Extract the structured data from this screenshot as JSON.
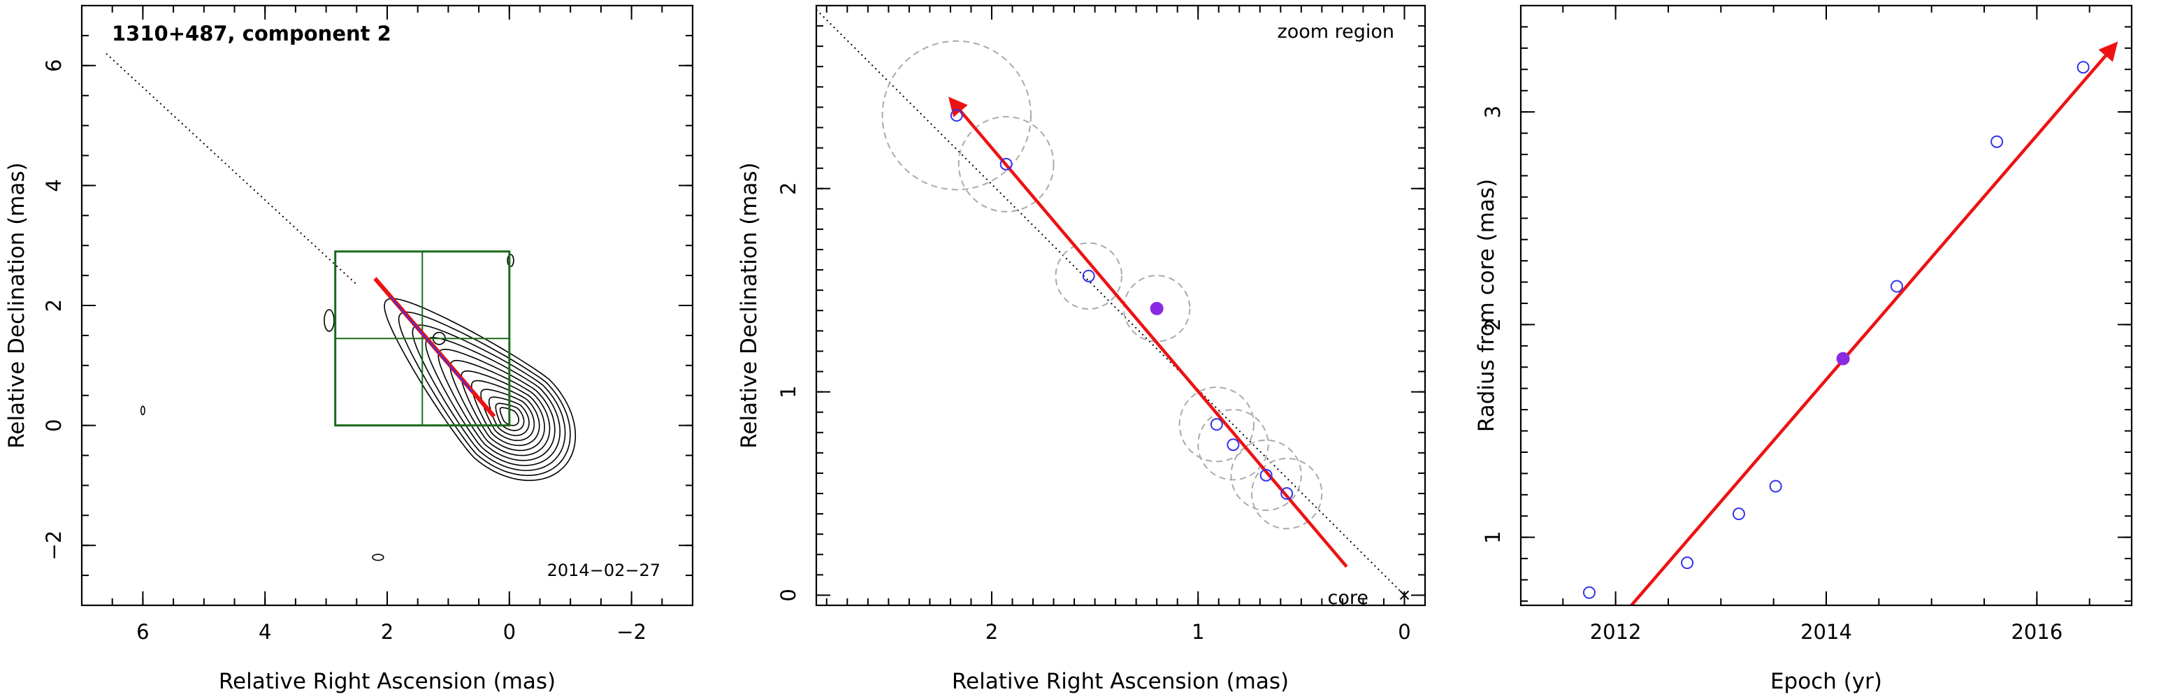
{
  "colors": {
    "trend": "#ee1111",
    "point": "#3333ee",
    "point_fill": "#8a2be2",
    "box": "#1a6b1a",
    "contour": "#000000",
    "circle": "#aaaaaa"
  },
  "chart_data": [
    {
      "type": "scatter",
      "title": "1310+487, component 2",
      "date_label": "2014−02−27",
      "xlabel": "Relative Right Ascension (mas)",
      "ylabel": "Relative Declination (mas)",
      "xlim": [
        7,
        -3
      ],
      "ylim": [
        -3,
        7
      ],
      "xticks": [
        6,
        4,
        2,
        0,
        -2
      ],
      "yticks": [
        -2,
        0,
        2,
        4,
        6
      ],
      "xtick_labels": [
        "6",
        "4",
        "2",
        "0",
        "−2"
      ],
      "ytick_labels": [
        "−2",
        "0",
        "2",
        "4",
        "6"
      ],
      "contours": {
        "core": [
          0,
          0.15
        ],
        "levels": 12,
        "notes": "nested contours of a core-jet radio source extending to the north-east"
      },
      "trajectory": {
        "from": [
          0.25,
          0.15
        ],
        "to": [
          2.2,
          2.45
        ]
      },
      "jet_axis": {
        "from": [
          6.6,
          6.2
        ],
        "to": [
          2.5,
          2.35
        ]
      },
      "zoom_box": {
        "x": [
          2.85,
          0
        ],
        "y": [
          0,
          2.9
        ]
      },
      "component": [
        1.2,
        1.4
      ]
    },
    {
      "type": "scatter",
      "label": "zoom region",
      "core_label": "core",
      "xlabel": "Relative Right Ascension (mas)",
      "ylabel": "Relative Declination (mas)",
      "xlim": [
        2.85,
        -0.1
      ],
      "ylim": [
        -0.05,
        2.9
      ],
      "xticks": [
        2,
        1,
        0
      ],
      "yticks": [
        0,
        1,
        2
      ],
      "xtick_labels": [
        "2",
        "1",
        "0"
      ],
      "ytick_labels": [
        "0",
        "1",
        "2"
      ],
      "points": [
        {
          "x": 2.17,
          "y": 2.36,
          "r": 0.36
        },
        {
          "x": 1.93,
          "y": 2.12,
          "r": 0.23
        },
        {
          "x": 1.53,
          "y": 1.57,
          "r": 0.16
        },
        {
          "x": 0.91,
          "y": 0.84,
          "r": 0.18
        },
        {
          "x": 0.83,
          "y": 0.74,
          "r": 0.17
        },
        {
          "x": 0.67,
          "y": 0.59,
          "r": 0.17
        },
        {
          "x": 0.57,
          "y": 0.5,
          "r": 0.17
        }
      ],
      "highlight": {
        "x": 1.2,
        "y": 1.41,
        "r": 0.16
      },
      "trajectory": {
        "from": [
          0.28,
          0.14
        ],
        "to": [
          2.2,
          2.44
        ]
      },
      "jet_axis": {
        "from": [
          2.85,
          2.88
        ],
        "to": [
          0,
          0
        ]
      }
    },
    {
      "type": "scatter",
      "xlabel": "Epoch (yr)",
      "ylabel": "Radius from core (mas)",
      "xlim": [
        2011.1,
        2016.9
      ],
      "ylim": [
        0.68,
        3.5
      ],
      "xticks": [
        2012,
        2014,
        2016
      ],
      "yticks": [
        1,
        2,
        3
      ],
      "xtick_labels": [
        "2012",
        "2014",
        "2016"
      ],
      "ytick_labels": [
        "1",
        "2",
        "3"
      ],
      "x": [
        2011.75,
        2012.68,
        2013.17,
        2013.52,
        2014.16,
        2014.67,
        2015.62,
        2016.44
      ],
      "y": [
        0.74,
        0.88,
        1.11,
        1.24,
        1.84,
        2.18,
        2.86,
        3.21
      ],
      "highlight_index": 4,
      "fit": {
        "from": [
          2012.15,
          0.68
        ],
        "to": [
          2016.75,
          3.32
        ]
      }
    }
  ]
}
